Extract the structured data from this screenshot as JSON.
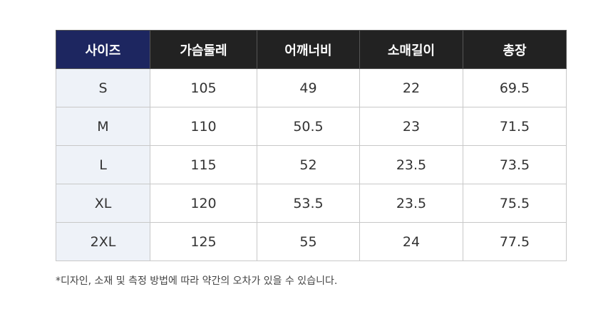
{
  "colors": {
    "first_header": "#1d2660",
    "header": "#222222",
    "first_column": "#eef2f8"
  },
  "table": {
    "headers": [
      "사이즈",
      "가슴둘레",
      "어깨너비",
      "소매길이",
      "총장"
    ],
    "rows": [
      [
        "S",
        "105",
        "49",
        "22",
        "69.5"
      ],
      [
        "M",
        "110",
        "50.5",
        "23",
        "71.5"
      ],
      [
        "L",
        "115",
        "52",
        "23.5",
        "73.5"
      ],
      [
        "XL",
        "120",
        "53.5",
        "23.5",
        "75.5"
      ],
      [
        "2XL",
        "125",
        "55",
        "24",
        "77.5"
      ]
    ]
  },
  "note": "*디자인, 소재 및 측정 방법에 따라 약간의 오차가 있을 수 있습니다."
}
